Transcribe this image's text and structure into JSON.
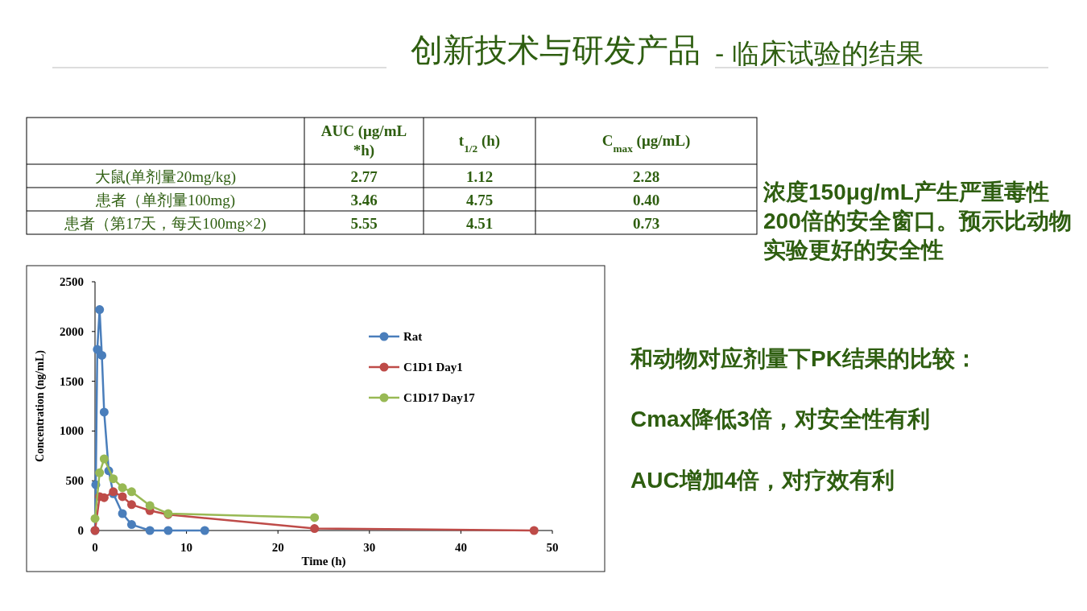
{
  "chart_data": [
    {
      "type": "heatmap",
      "title": "创新技术与研发产品",
      "subtitle": "- 临床试验的结果",
      "categories": [
        "AUC (μg/mL*h)",
        "t$_{1/2}$ (h)",
        "C$_{max}$ (μg/mL)"
      ],
      "y_categories": [
        "大鼠(单剂量20mg/kg)",
        "患者（单剂量100mg)",
        "患者（第17天，每天100mg×2)"
      ],
      "cells": [
        [
          2.77,
          1.12,
          2.28
        ],
        [
          3.46,
          4.75,
          0.4
        ],
        [
          5.55,
          4.51,
          0.73
        ]
      ],
      "data_labels": true,
      "cell_labels": [
        [
          "2.77",
          "1.12",
          "2.28"
        ],
        [
          "3.46",
          "4.75",
          "0.40"
        ],
        [
          "5.55",
          "4.51",
          "0.73"
        ]
      ]
    },
    {
      "type": "line",
      "xlabel": "Time (h)",
      "ylabel": "Concentration (ng/mL)",
      "xlim": [
        0,
        50
      ],
      "xticks": [
        0,
        10,
        20,
        30,
        40,
        50
      ],
      "ylim": [
        0,
        2500
      ],
      "yticks": [
        0,
        500,
        1000,
        1500,
        2000,
        2500
      ],
      "grid": false,
      "legend": "right",
      "marker": "circle",
      "line_style": "solid",
      "series": [
        {
          "name": "Rat",
          "color": "#4a7ebb",
          "x": [
            0,
            0.083,
            0.25,
            0.5,
            0.75,
            1,
            1.5,
            2,
            3,
            4,
            6,
            8,
            12
          ],
          "values": [
            0,
            460,
            1820,
            2220,
            1760,
            1190,
            600,
            370,
            170,
            60,
            0,
            0,
            0
          ]
        },
        {
          "name": "C1D1 Day1",
          "color": "#be4b48",
          "x": [
            0,
            0.5,
            1,
            2,
            3,
            4,
            6,
            8,
            24,
            48
          ],
          "values": [
            0,
            340,
            330,
            390,
            340,
            260,
            200,
            160,
            20,
            0
          ]
        },
        {
          "name": "C1D17 Day17",
          "color": "#98b954",
          "x": [
            0,
            0.5,
            1,
            2,
            3,
            4,
            6,
            8,
            24
          ],
          "values": [
            120,
            580,
            720,
            520,
            430,
            390,
            250,
            170,
            130
          ]
        }
      ]
    },
    {
      "type": "other",
      "annotations": [
        "浓度150μg/mL产生严重毒性200倍的安全窗口。预示比动物实验更好的安全性",
        "和动物对应剂量下PK结果的比较：",
        "Cmax降低3倍，对安全性有利",
        "AUC增加4倍，对疗效有利"
      ]
    }
  ]
}
